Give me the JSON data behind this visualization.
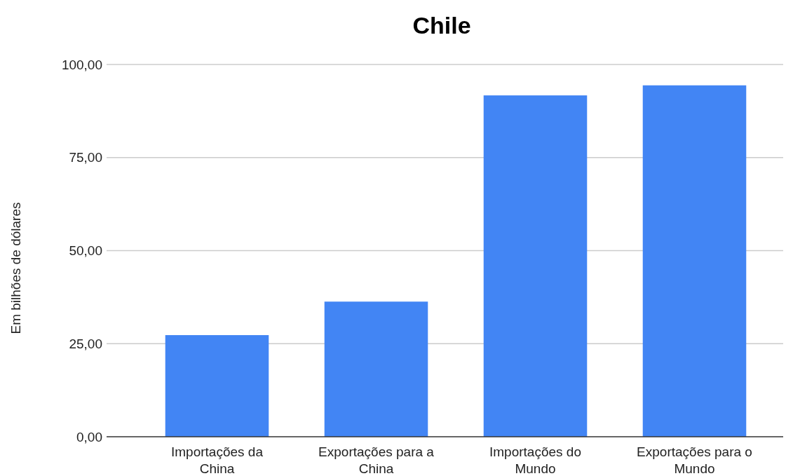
{
  "chart_data": {
    "type": "bar",
    "title": "Chile",
    "ylabel": "Em bilhões de dólares",
    "categories": [
      "Importações da China",
      "Exportações para a China",
      "Importações do Mundo",
      "Exportações para o Mundo"
    ],
    "values": [
      27.3,
      36.3,
      91.7,
      94.4
    ],
    "color": "#4285f4",
    "ylim": [
      0,
      100
    ],
    "yticks": [
      {
        "value": 0,
        "label": "0,00"
      },
      {
        "value": 25,
        "label": "25,00"
      },
      {
        "value": 50,
        "label": "50,00"
      },
      {
        "value": 75,
        "label": "75,00"
      },
      {
        "value": 100,
        "label": "100,00"
      }
    ],
    "grid": "y"
  }
}
